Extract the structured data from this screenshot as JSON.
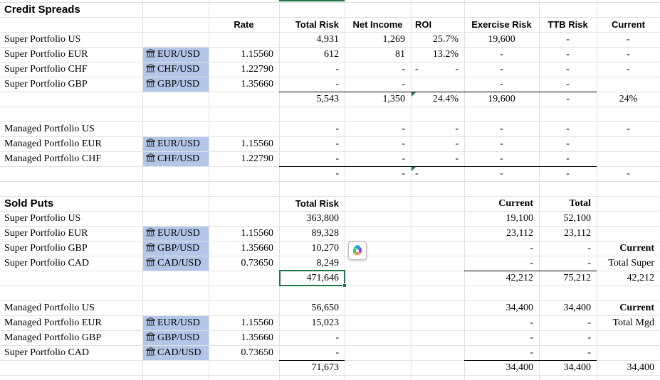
{
  "headers": {
    "credit_title": "Credit Spreads",
    "rate": "Rate",
    "total_risk": "Total Risk",
    "net_income": "Net Income",
    "roi": "ROI",
    "exercise_risk": "Exercise Risk",
    "ttb_risk": "TTB Risk",
    "current": "Current",
    "sold_title": "Sold Puts",
    "sold_total_risk": "Total Risk",
    "sold_current": "Current",
    "sold_total": "Total"
  },
  "credit_super": [
    {
      "label": "Super Portfolio US",
      "currency": "",
      "rate": "",
      "total_risk": "4,931",
      "net_income": "1,269",
      "roi": "25.7%",
      "exercise": "19,600",
      "ttb": "-",
      "current": "-"
    },
    {
      "label": "Super Portfolio EUR",
      "currency": "EUR/USD",
      "rate": "1.15560",
      "total_risk": "612",
      "net_income": "81",
      "roi": "13.2%",
      "exercise": "-",
      "ttb": "-",
      "current": "-"
    },
    {
      "label": "Super Portfolio CHF",
      "currency": "CHF/USD",
      "rate": "1.22790",
      "total_risk": "-",
      "net_income": "-",
      "roi": "-",
      "exercise": "-",
      "ttb": "-",
      "current": "-"
    },
    {
      "label": "Super Portfolio GBP",
      "currency": "GBP/USD",
      "rate": "1.35660",
      "total_risk": "-",
      "net_income": "-",
      "roi": "",
      "exercise": "-",
      "ttb": "-",
      "current": ""
    }
  ],
  "credit_super_total": {
    "total_risk": "5,543",
    "net_income": "1,350",
    "roi": "24.4%",
    "exercise": "19,600",
    "ttb": "-",
    "current": "24%"
  },
  "credit_managed": [
    {
      "label": "Managed Portfolio US",
      "currency": "",
      "rate": "",
      "total_risk": "-",
      "net_income": "-",
      "roi": "-",
      "exercise": "-",
      "ttb": "-",
      "current": "-"
    },
    {
      "label": "Managed Portfolio EUR",
      "currency": "EUR/USD",
      "rate": "1.15560",
      "total_risk": "-",
      "net_income": "-",
      "roi": "-",
      "exercise": "-",
      "ttb": "-",
      "current": ""
    },
    {
      "label": "Managed Portfolio CHF",
      "currency": "CHF/USD",
      "rate": "1.22790",
      "total_risk": "-",
      "net_income": "-",
      "roi": "-",
      "exercise": "-",
      "ttb": "-",
      "current": ""
    }
  ],
  "credit_managed_total": {
    "total_risk": "-",
    "net_income": "-",
    "roi": "-",
    "exercise": "-",
    "ttb": "-",
    "current": "-"
  },
  "sold_super": [
    {
      "label": "Super Portfolio US",
      "currency": "",
      "rate": "",
      "total_risk": "363,800",
      "current": "19,100",
      "total": "52,100",
      "extra": ""
    },
    {
      "label": "Super Portfolio EUR",
      "currency": "EUR/USD",
      "rate": "1.15560",
      "total_risk": "89,328",
      "current": "23,112",
      "total": "23,112",
      "extra": ""
    },
    {
      "label": "Super Portfolio GBP",
      "currency": "GBP/USD",
      "rate": "1.35660",
      "total_risk": "10,270",
      "current": "-",
      "total": "-",
      "extra": "Current"
    },
    {
      "label": "Super Portfolio CAD",
      "currency": "CAD/USD",
      "rate": "0.73650",
      "total_risk": "8,249",
      "current": "-",
      "total": "-",
      "extra": "Total Super"
    }
  ],
  "sold_super_total": {
    "total_risk": "471,646",
    "current": "42,212",
    "total": "75,212",
    "extra": "42,212"
  },
  "sold_managed": [
    {
      "label": "Managed Portfolio US",
      "currency": "",
      "rate": "",
      "total_risk": "56,650",
      "current": "34,400",
      "total": "34,400",
      "extra": "Current"
    },
    {
      "label": "Managed Portfolio EUR",
      "currency": "EUR/USD",
      "rate": "1.15560",
      "total_risk": "15,023",
      "current": "-",
      "total": "-",
      "extra": "Total Mgd"
    },
    {
      "label": "Managed Portfolio GBP",
      "currency": "GBP/USD",
      "rate": "1.35660",
      "total_risk": "-",
      "current": "-",
      "total": "-",
      "extra": ""
    },
    {
      "label": "Super Portfolio CAD",
      "currency": "CAD/USD",
      "rate": "0.73650",
      "total_risk": "-",
      "current": "-",
      "total": "-",
      "extra": ""
    }
  ],
  "sold_managed_total": {
    "total_risk": "71,673",
    "current": "34,400",
    "total": "34,400",
    "extra": "34,400"
  },
  "icons": {
    "currency_icon": "bank-building-icon",
    "copilot": "copilot-icon"
  },
  "colors": {
    "currency_fill": "#b4c6e7",
    "selection": "#217346",
    "gridline": "#e1e1e1"
  }
}
